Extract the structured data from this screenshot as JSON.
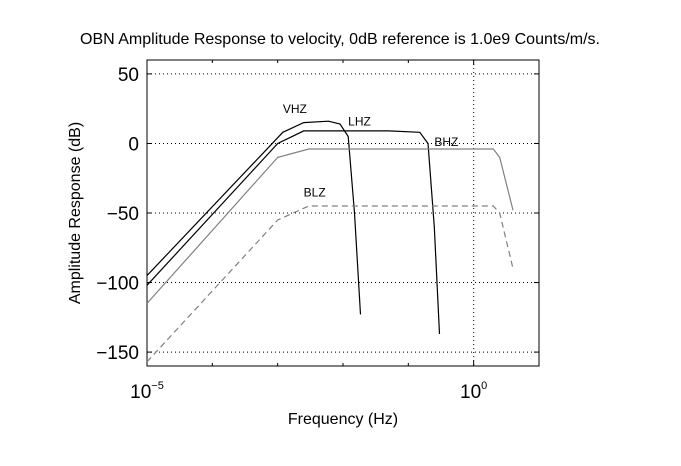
{
  "chart_data": {
    "type": "line",
    "title": "OBN Amplitude Response to velocity, 0dB reference is 1.0e9 Counts/m/s.",
    "xlabel": "Frequency (Hz)",
    "ylabel": "Amplitude Response (dB)",
    "xscale": "log",
    "xlim": [
      1e-05,
      10
    ],
    "ylim": [
      -160,
      60
    ],
    "grid": true,
    "yticks": [
      50,
      0,
      -50,
      -100,
      -150
    ],
    "ytick_labels": [
      "50",
      "0",
      "−50",
      "−100",
      "−150"
    ],
    "xticks": [
      {
        "value": 1e-05,
        "base": "10",
        "exp": "−5"
      },
      {
        "value": 1,
        "base": "10",
        "exp": "0"
      }
    ],
    "series": [
      {
        "name": "VHZ",
        "color": "#000000",
        "dash": "solid",
        "points": [
          [
            1e-05,
            -95
          ],
          [
            0.0012,
            8
          ],
          [
            0.0025,
            15
          ],
          [
            0.006,
            16
          ],
          [
            0.009,
            14
          ],
          [
            0.012,
            5
          ],
          [
            0.015,
            -50
          ],
          [
            0.0185,
            -123
          ]
        ]
      },
      {
        "name": "LHZ",
        "color": "#000000",
        "dash": "solid",
        "points": [
          [
            1e-05,
            -102
          ],
          [
            0.001,
            0
          ],
          [
            0.0025,
            9
          ],
          [
            0.05,
            9
          ],
          [
            0.15,
            8
          ],
          [
            0.2,
            0
          ],
          [
            0.25,
            -60
          ],
          [
            0.3,
            -137
          ]
        ]
      },
      {
        "name": "BHZ",
        "color": "#808080",
        "dash": "solid",
        "points": [
          [
            1e-05,
            -115
          ],
          [
            0.001,
            -10
          ],
          [
            0.003,
            -4
          ],
          [
            0.2,
            -4
          ],
          [
            2.0,
            -4
          ],
          [
            2.5,
            -10
          ],
          [
            4.0,
            -48
          ]
        ]
      },
      {
        "name": "BLZ",
        "color": "#808080",
        "dash": "dashed",
        "points": [
          [
            1e-05,
            -157
          ],
          [
            0.001,
            -55
          ],
          [
            0.003,
            -45
          ],
          [
            0.2,
            -45
          ],
          [
            2.0,
            -45
          ],
          [
            2.5,
            -50
          ],
          [
            4.0,
            -90
          ]
        ]
      }
    ]
  }
}
